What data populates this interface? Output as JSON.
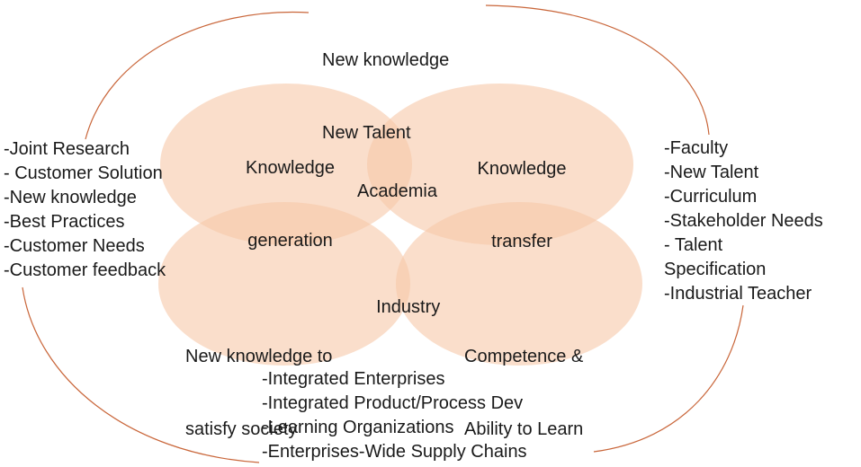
{
  "top_label": [
    "New knowledge",
    "New Talent"
  ],
  "circles": {
    "knowledge_generation": [
      "Knowledge",
      "generation"
    ],
    "knowledge_transfer": [
      "Knowledge",
      "transfer"
    ],
    "new_knowledge_society": [
      "New knowledge to",
      "satisfy society"
    ],
    "competence": [
      "Competence &",
      "Ability to Learn"
    ]
  },
  "centers": {
    "academia": "Academia",
    "industry": "Industry"
  },
  "left_list": [
    "-Joint Research",
    "- Customer Solution",
    "-New knowledge",
    "-Best Practices",
    "-Customer Needs",
    "-Customer feedback"
  ],
  "right_list": [
    "-Faculty",
    "-New Talent",
    "-Curriculum",
    "-Stakeholder Needs",
    "- Talent",
    "Specification",
    "-Industrial Teacher"
  ],
  "bottom_list": [
    "-Integrated Enterprises",
    "-Integrated Product/Process Dev",
    "-Learning Organizations",
    "-Enterprises-Wide Supply Chains"
  ],
  "colors": {
    "ellipse_fill": "#f7c8a8",
    "arc_stroke": "#c9663a",
    "text": "#1a1a1a"
  }
}
